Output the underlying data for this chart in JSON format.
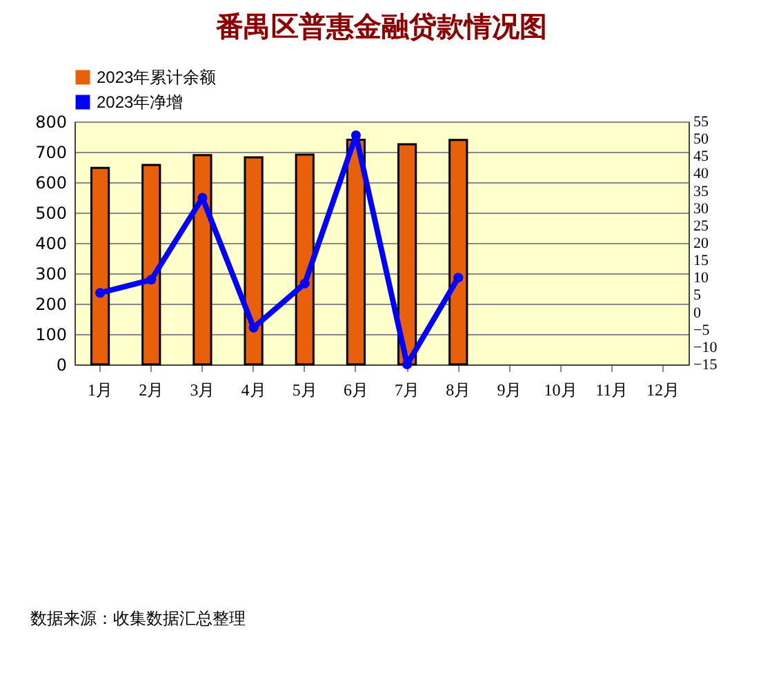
{
  "chart_data": {
    "type": "bar",
    "title": "番禺区普惠金融贷款情况图",
    "categories": [
      "1月",
      "2月",
      "3月",
      "4月",
      "5月",
      "6月",
      "7月",
      "8月",
      "9月",
      "10月",
      "11月",
      "12月"
    ],
    "series": [
      {
        "name": "2023年累计余额",
        "color": "#e8600a",
        "values": [
          647,
          657,
          689,
          682,
          691,
          740,
          725,
          739,
          null,
          null,
          null,
          null
        ]
      },
      {
        "name": "2023年净增",
        "type": "line",
        "axis": "y2",
        "color": "#0000ff",
        "values": [
          5.6,
          9.4,
          33,
          -4.4,
          8.3,
          51,
          -15,
          10,
          null,
          null,
          null,
          null
        ]
      }
    ],
    "ylim": [
      0,
      800
    ],
    "yticks": [
      0,
      100,
      200,
      300,
      400,
      500,
      600,
      700,
      800
    ],
    "y2lim": [
      -15,
      55
    ],
    "y2ticks": [
      -15,
      -10,
      -5,
      0,
      5,
      10,
      15,
      20,
      25,
      30,
      35,
      40,
      45,
      50,
      55
    ],
    "grid": "y",
    "legend": "top",
    "marker": "circle",
    "annotations": [
      "数据来源：收集数据汇总整理"
    ]
  }
}
